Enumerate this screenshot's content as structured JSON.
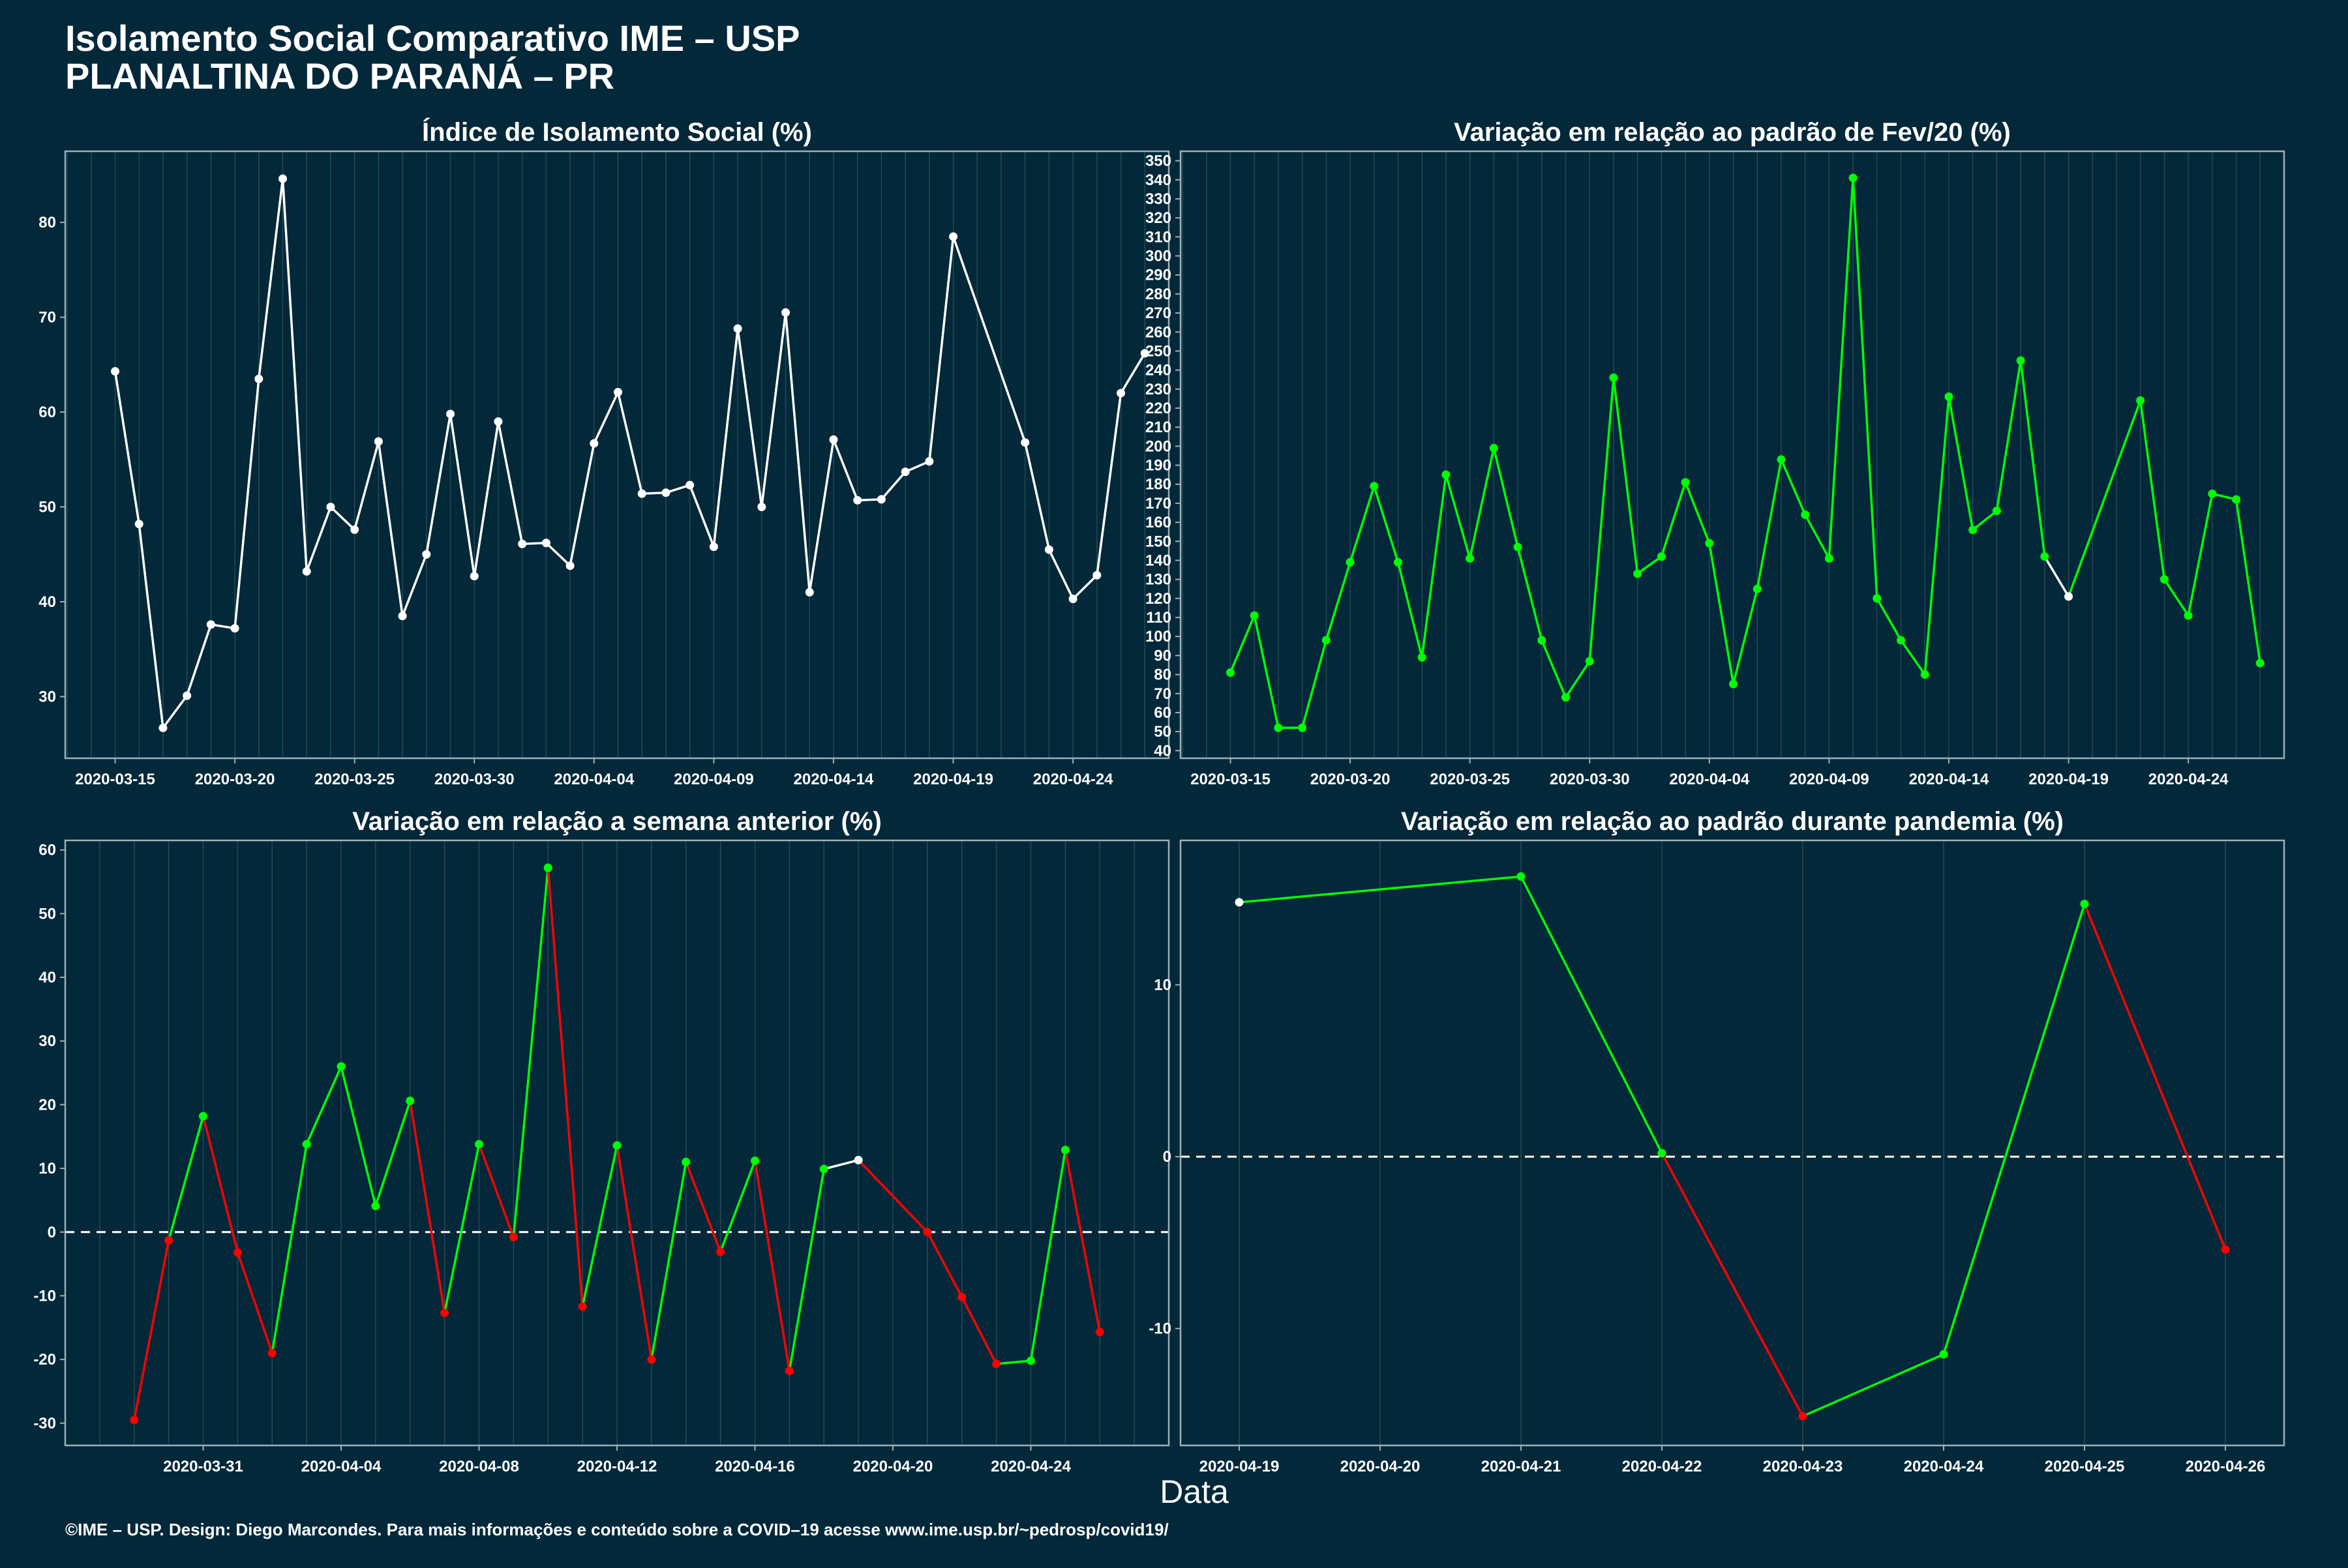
{
  "header": {
    "title_line1": "Isolamento Social Comparativo IME – USP",
    "title_line2": "PLANALTINA DO PARANÁ – PR"
  },
  "xlabel": "Data",
  "caption": "©IME – USP. Design: Diego Marcondes. Para mais informações e conteúdo sobre a COVID–19 acesse www.ime.usp.br/~pedrosp/covid19/",
  "colors": {
    "background": "#02283a",
    "up": "#00ff00",
    "down": "#ff0000",
    "neutral": "#ffffff",
    "grid": "#244a56"
  },
  "chart_data": [
    {
      "id": "p1",
      "type": "line",
      "title": "Índice de Isolamento Social (%)",
      "ylim": [
        23.5,
        87.5
      ],
      "yticks": [
        30,
        40,
        50,
        60,
        70,
        80
      ],
      "xlim": [
        "2020-03-12T22:00",
        "2020-04-28T00:00"
      ],
      "xtick_labels": [
        "2020-03-15",
        "2020-03-20",
        "2020-03-25",
        "2020-03-30",
        "2020-04-04",
        "2020-04-09",
        "2020-04-14",
        "2020-04-19",
        "2020-04-24"
      ],
      "reference_line": null,
      "x": [
        "2020-03-15",
        "2020-03-16",
        "2020-03-17",
        "2020-03-18",
        "2020-03-19",
        "2020-03-20",
        "2020-03-21",
        "2020-03-22",
        "2020-03-23",
        "2020-03-24",
        "2020-03-25",
        "2020-03-26",
        "2020-03-27",
        "2020-03-28",
        "2020-03-29",
        "2020-03-30",
        "2020-03-31",
        "2020-04-01",
        "2020-04-02",
        "2020-04-03",
        "2020-04-04",
        "2020-04-05",
        "2020-04-06",
        "2020-04-07",
        "2020-04-08",
        "2020-04-09",
        "2020-04-10",
        "2020-04-11",
        "2020-04-12",
        "2020-04-13",
        "2020-04-14",
        "2020-04-15",
        "2020-04-16",
        "2020-04-17",
        "2020-04-18",
        "2020-04-19",
        "2020-04-22",
        "2020-04-23",
        "2020-04-24",
        "2020-04-25",
        "2020-04-26",
        "2020-04-27"
      ],
      "values": [
        64.3,
        48.2,
        26.7,
        30.1,
        37.6,
        37.2,
        63.5,
        84.6,
        43.2,
        50.0,
        47.6,
        56.9,
        38.5,
        45.0,
        59.8,
        42.7,
        59.0,
        46.1,
        46.2,
        43.8,
        56.7,
        62.1,
        51.4,
        51.5,
        52.3,
        45.8,
        68.8,
        50.0,
        70.5,
        41.0,
        57.1,
        50.7,
        50.8,
        53.7,
        54.8,
        78.5,
        56.8,
        45.5,
        40.3,
        42.8,
        62.0,
        66.2
      ],
      "colors": []
    },
    {
      "id": "p2",
      "type": "line",
      "title": "Variação em relação ao padrão de Fev/20 (%)",
      "ylim": [
        36,
        355
      ],
      "yticks": [
        40,
        50,
        60,
        70,
        80,
        90,
        100,
        110,
        120,
        130,
        140,
        150,
        160,
        170,
        180,
        190,
        200,
        210,
        220,
        230,
        240,
        250,
        260,
        270,
        280,
        290,
        300,
        310,
        320,
        330,
        340,
        350
      ],
      "xlim": [
        "2020-03-12T22:00",
        "2020-04-28T00:00"
      ],
      "xtick_labels": [
        "2020-03-15",
        "2020-03-20",
        "2020-03-25",
        "2020-03-30",
        "2020-04-04",
        "2020-04-09",
        "2020-04-14",
        "2020-04-19",
        "2020-04-24"
      ],
      "reference_line": null,
      "x": [
        "2020-03-15",
        "2020-03-16",
        "2020-03-17",
        "2020-03-18",
        "2020-03-19",
        "2020-03-20",
        "2020-03-21",
        "2020-03-22",
        "2020-03-23",
        "2020-03-24",
        "2020-03-25",
        "2020-03-26",
        "2020-03-27",
        "2020-03-28",
        "2020-03-29",
        "2020-03-30",
        "2020-03-31",
        "2020-04-01",
        "2020-04-02",
        "2020-04-03",
        "2020-04-04",
        "2020-04-05",
        "2020-04-06",
        "2020-04-07",
        "2020-04-08",
        "2020-04-09",
        "2020-04-10",
        "2020-04-11",
        "2020-04-12",
        "2020-04-13",
        "2020-04-14",
        "2020-04-15",
        "2020-04-16",
        "2020-04-17",
        "2020-04-18",
        "2020-04-19",
        "2020-04-22",
        "2020-04-23",
        "2020-04-24",
        "2020-04-25",
        "2020-04-26",
        "2020-04-27"
      ],
      "values": [
        81,
        111,
        52,
        52,
        98,
        139,
        179,
        139,
        89,
        185,
        141,
        199,
        147,
        98,
        68,
        87,
        236,
        133,
        142,
        181,
        149,
        75,
        125,
        193,
        164,
        141,
        341,
        120,
        98,
        80,
        226,
        156,
        166,
        245,
        142,
        121,
        224,
        130,
        111,
        175,
        172,
        86
      ],
      "colors": [
        "g",
        "g",
        "g",
        "g",
        "g",
        "g",
        "g",
        "g",
        "g",
        "g",
        "g",
        "g",
        "g",
        "g",
        "g",
        "g",
        "g",
        "g",
        "g",
        "g",
        "g",
        "g",
        "g",
        "g",
        "g",
        "g",
        "g",
        "g",
        "g",
        "g",
        "g",
        "g",
        "g",
        "g",
        "g",
        "w",
        "g",
        "g",
        "g",
        "g",
        "g",
        "g"
      ]
    },
    {
      "id": "p3",
      "type": "line",
      "title": "Variação em relação a semana anterior (%)",
      "ylim": [
        -33.5,
        61.5
      ],
      "yticks": [
        -30,
        -20,
        -10,
        0,
        10,
        20,
        30,
        40,
        50,
        60
      ],
      "xlim": [
        "2020-03-27T00:00",
        "2020-04-28T00:00"
      ],
      "xtick_labels": [
        "2020-03-31",
        "2020-04-04",
        "2020-04-08",
        "2020-04-12",
        "2020-04-16",
        "2020-04-20",
        "2020-04-24"
      ],
      "reference_line": 0,
      "x": [
        "2020-03-29",
        "2020-03-30",
        "2020-03-31",
        "2020-04-01",
        "2020-04-02",
        "2020-04-03",
        "2020-04-04",
        "2020-04-05",
        "2020-04-06",
        "2020-04-07",
        "2020-04-08",
        "2020-04-09",
        "2020-04-10",
        "2020-04-11",
        "2020-04-12",
        "2020-04-13",
        "2020-04-14",
        "2020-04-15",
        "2020-04-16",
        "2020-04-17",
        "2020-04-18",
        "2020-04-19",
        "2020-04-21",
        "2020-04-22",
        "2020-04-23",
        "2020-04-24",
        "2020-04-25",
        "2020-04-26"
      ],
      "values": [
        -29.5,
        -1.3,
        18.2,
        -3.2,
        -19.0,
        13.8,
        26.0,
        4.1,
        20.6,
        -12.7,
        13.8,
        -0.8,
        57.2,
        -11.7,
        13.6,
        -20.0,
        11.0,
        -3.1,
        11.2,
        -21.8,
        9.9,
        11.3,
        0,
        -10.2,
        -20.7,
        -20.2,
        12.9,
        -15.7
      ],
      "colors": [
        "r",
        "r",
        "g",
        "r",
        "r",
        "g",
        "g",
        "g",
        "g",
        "r",
        "g",
        "r",
        "g",
        "r",
        "g",
        "r",
        "g",
        "r",
        "g",
        "r",
        "g",
        "w",
        "r",
        "r",
        "r",
        "g",
        "g",
        "r"
      ]
    },
    {
      "id": "p4",
      "type": "line",
      "title": "Variação em relação ao padrão durante pandemia (%)",
      "ylim": [
        -16.8,
        18.4
      ],
      "yticks": [
        -10,
        0,
        10
      ],
      "xlim": [
        "2020-04-18T14:00",
        "2020-04-26T10:00"
      ],
      "xtick_labels": [
        "2020-04-19",
        "2020-04-20",
        "2020-04-21",
        "2020-04-22",
        "2020-04-23",
        "2020-04-24",
        "2020-04-25",
        "2020-04-26"
      ],
      "reference_line": 0,
      "x": [
        "2020-04-19",
        "2020-04-21",
        "2020-04-22",
        "2020-04-23",
        "2020-04-24",
        "2020-04-25",
        "2020-04-26"
      ],
      "values": [
        14.8,
        16.3,
        0.2,
        -15.1,
        -11.5,
        14.7,
        -5.4
      ],
      "colors": [
        "w",
        "g",
        "g",
        "r",
        "g",
        "g",
        "r"
      ]
    }
  ]
}
